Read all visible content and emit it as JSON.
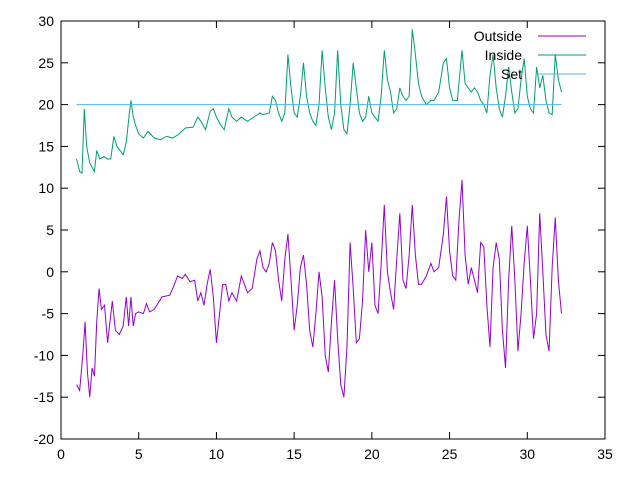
{
  "chart_data": {
    "type": "line",
    "title": "",
    "xlabel": "",
    "ylabel": "",
    "xlim": [
      0,
      35
    ],
    "ylim": [
      -20,
      30
    ],
    "xticks": [
      0,
      5,
      10,
      15,
      20,
      25,
      30,
      35
    ],
    "yticks": [
      -20,
      -15,
      -10,
      -5,
      0,
      5,
      10,
      15,
      20,
      25,
      30
    ],
    "grid": false,
    "legend_position": "top-right",
    "series": [
      {
        "name": "Outside",
        "color": "#9400d3",
        "points": [
          [
            1.0,
            -13.5
          ],
          [
            1.2,
            -14.2
          ],
          [
            1.4,
            -10.0
          ],
          [
            1.55,
            -6.0
          ],
          [
            1.7,
            -12.0
          ],
          [
            1.85,
            -15.0
          ],
          [
            2.0,
            -11.5
          ],
          [
            2.15,
            -12.5
          ],
          [
            2.3,
            -6.0
          ],
          [
            2.45,
            -2.0
          ],
          [
            2.6,
            -4.5
          ],
          [
            2.8,
            -4.0
          ],
          [
            3.0,
            -8.5
          ],
          [
            3.15,
            -6.0
          ],
          [
            3.3,
            -3.5
          ],
          [
            3.5,
            -7.0
          ],
          [
            3.75,
            -7.5
          ],
          [
            4.0,
            -6.5
          ],
          [
            4.2,
            -3.0
          ],
          [
            4.35,
            -6.5
          ],
          [
            4.5,
            -3.0
          ],
          [
            4.65,
            -6.5
          ],
          [
            4.8,
            -5.0
          ],
          [
            5.0,
            -4.8
          ],
          [
            5.3,
            -5.0
          ],
          [
            5.5,
            -3.8
          ],
          [
            5.7,
            -4.8
          ],
          [
            6.0,
            -4.5
          ],
          [
            6.5,
            -3.0
          ],
          [
            7.0,
            -2.8
          ],
          [
            7.3,
            -1.5
          ],
          [
            7.5,
            -0.5
          ],
          [
            7.8,
            -0.8
          ],
          [
            8.0,
            -0.3
          ],
          [
            8.3,
            -1.2
          ],
          [
            8.6,
            -1.0
          ],
          [
            8.8,
            -3.5
          ],
          [
            9.0,
            -2.5
          ],
          [
            9.2,
            -4.0
          ],
          [
            9.4,
            -1.5
          ],
          [
            9.6,
            0.3
          ],
          [
            9.8,
            -3.0
          ],
          [
            10.0,
            -8.5
          ],
          [
            10.2,
            -5.0
          ],
          [
            10.4,
            -1.5
          ],
          [
            10.6,
            -1.5
          ],
          [
            10.8,
            -3.5
          ],
          [
            11.0,
            -2.5
          ],
          [
            11.3,
            -3.5
          ],
          [
            11.6,
            -0.5
          ],
          [
            11.8,
            -1.5
          ],
          [
            12.0,
            -2.5
          ],
          [
            12.3,
            -2.0
          ],
          [
            12.6,
            1.5
          ],
          [
            12.8,
            2.5
          ],
          [
            13.0,
            0.5
          ],
          [
            13.2,
            0.0
          ],
          [
            13.4,
            1.0
          ],
          [
            13.6,
            3.5
          ],
          [
            13.8,
            2.5
          ],
          [
            14.0,
            -1.0
          ],
          [
            14.2,
            -3.5
          ],
          [
            14.4,
            1.5
          ],
          [
            14.6,
            4.5
          ],
          [
            14.8,
            -1.0
          ],
          [
            15.0,
            -7.0
          ],
          [
            15.2,
            -4.0
          ],
          [
            15.4,
            0.5
          ],
          [
            15.6,
            2.0
          ],
          [
            15.8,
            -1.5
          ],
          [
            16.0,
            -7.0
          ],
          [
            16.2,
            -9.0
          ],
          [
            16.4,
            -5.0
          ],
          [
            16.6,
            0.0
          ],
          [
            16.8,
            -3.0
          ],
          [
            17.0,
            -10.0
          ],
          [
            17.2,
            -12.0
          ],
          [
            17.4,
            -6.0
          ],
          [
            17.6,
            -1.0
          ],
          [
            17.8,
            -8.0
          ],
          [
            18.0,
            -13.5
          ],
          [
            18.2,
            -15.0
          ],
          [
            18.4,
            -9.0
          ],
          [
            18.6,
            3.5
          ],
          [
            18.8,
            -2.0
          ],
          [
            19.0,
            -8.5
          ],
          [
            19.2,
            -8.0
          ],
          [
            19.4,
            -3.5
          ],
          [
            19.6,
            5.0
          ],
          [
            19.8,
            0.0
          ],
          [
            20.0,
            3.5
          ],
          [
            20.2,
            -4.0
          ],
          [
            20.4,
            -5.0
          ],
          [
            20.6,
            1.0
          ],
          [
            20.8,
            8.0
          ],
          [
            21.0,
            0.0
          ],
          [
            21.2,
            -2.5
          ],
          [
            21.4,
            -4.5
          ],
          [
            21.6,
            1.5
          ],
          [
            21.8,
            7.0
          ],
          [
            22.0,
            -1.0
          ],
          [
            22.2,
            -2.0
          ],
          [
            22.4,
            2.0
          ],
          [
            22.6,
            8.0
          ],
          [
            22.8,
            2.0
          ],
          [
            23.0,
            -1.5
          ],
          [
            23.2,
            -1.5
          ],
          [
            23.5,
            -0.5
          ],
          [
            23.8,
            1.0
          ],
          [
            24.0,
            0.0
          ],
          [
            24.3,
            0.5
          ],
          [
            24.6,
            4.5
          ],
          [
            24.8,
            9.0
          ],
          [
            25.0,
            2.5
          ],
          [
            25.2,
            -0.5
          ],
          [
            25.4,
            -1.0
          ],
          [
            25.6,
            6.0
          ],
          [
            25.8,
            11.0
          ],
          [
            26.0,
            2.0
          ],
          [
            26.2,
            -1.5
          ],
          [
            26.4,
            0.5
          ],
          [
            26.6,
            -1.0
          ],
          [
            26.8,
            -2.5
          ],
          [
            27.0,
            3.5
          ],
          [
            27.2,
            3.0
          ],
          [
            27.4,
            -4.0
          ],
          [
            27.6,
            -9.0
          ],
          [
            27.8,
            0.5
          ],
          [
            28.0,
            3.5
          ],
          [
            28.2,
            1.5
          ],
          [
            28.4,
            -7.0
          ],
          [
            28.6,
            -11.5
          ],
          [
            28.8,
            -1.0
          ],
          [
            29.0,
            5.5
          ],
          [
            29.2,
            -1.0
          ],
          [
            29.4,
            -9.5
          ],
          [
            29.6,
            -5.0
          ],
          [
            29.8,
            1.0
          ],
          [
            30.0,
            5.5
          ],
          [
            30.2,
            -1.0
          ],
          [
            30.4,
            -8.0
          ],
          [
            30.6,
            -5.0
          ],
          [
            30.8,
            7.0
          ],
          [
            31.0,
            0.0
          ],
          [
            31.2,
            -7.5
          ],
          [
            31.4,
            -9.5
          ],
          [
            31.6,
            0.5
          ],
          [
            31.8,
            6.5
          ],
          [
            32.0,
            -1.0
          ],
          [
            32.2,
            -5.0
          ]
        ]
      },
      {
        "name": "Inside",
        "color": "#009e73",
        "points": [
          [
            1.0,
            13.5
          ],
          [
            1.2,
            12.0
          ],
          [
            1.35,
            11.8
          ],
          [
            1.5,
            19.5
          ],
          [
            1.65,
            15.0
          ],
          [
            1.85,
            13.0
          ],
          [
            2.0,
            12.5
          ],
          [
            2.15,
            12.0
          ],
          [
            2.3,
            14.5
          ],
          [
            2.5,
            13.5
          ],
          [
            2.75,
            13.8
          ],
          [
            3.0,
            13.5
          ],
          [
            3.2,
            13.5
          ],
          [
            3.4,
            16.2
          ],
          [
            3.6,
            15.0
          ],
          [
            3.8,
            14.5
          ],
          [
            4.0,
            14.0
          ],
          [
            4.2,
            15.5
          ],
          [
            4.4,
            19.0
          ],
          [
            4.5,
            20.5
          ],
          [
            4.65,
            18.5
          ],
          [
            4.8,
            17.5
          ],
          [
            5.0,
            16.5
          ],
          [
            5.3,
            16.0
          ],
          [
            5.6,
            16.8
          ],
          [
            6.0,
            16.0
          ],
          [
            6.4,
            15.8
          ],
          [
            6.8,
            16.2
          ],
          [
            7.2,
            16.0
          ],
          [
            7.6,
            16.5
          ],
          [
            8.0,
            17.2
          ],
          [
            8.5,
            17.3
          ],
          [
            8.8,
            18.5
          ],
          [
            9.0,
            18.0
          ],
          [
            9.3,
            17.0
          ],
          [
            9.6,
            19.2
          ],
          [
            9.8,
            19.5
          ],
          [
            10.0,
            18.5
          ],
          [
            10.3,
            17.5
          ],
          [
            10.5,
            17.0
          ],
          [
            10.8,
            19.5
          ],
          [
            11.0,
            18.5
          ],
          [
            11.3,
            18.0
          ],
          [
            11.6,
            18.5
          ],
          [
            12.0,
            18.0
          ],
          [
            12.4,
            18.5
          ],
          [
            12.8,
            19.0
          ],
          [
            13.0,
            18.8
          ],
          [
            13.4,
            19.0
          ],
          [
            13.6,
            21.0
          ],
          [
            13.8,
            20.5
          ],
          [
            14.0,
            19.0
          ],
          [
            14.2,
            18.0
          ],
          [
            14.4,
            19.0
          ],
          [
            14.6,
            26.0
          ],
          [
            14.8,
            22.0
          ],
          [
            15.0,
            19.0
          ],
          [
            15.2,
            18.5
          ],
          [
            15.4,
            21.0
          ],
          [
            15.6,
            25.0
          ],
          [
            15.8,
            21.0
          ],
          [
            16.0,
            19.0
          ],
          [
            16.2,
            18.0
          ],
          [
            16.4,
            17.5
          ],
          [
            16.6,
            20.0
          ],
          [
            16.8,
            26.5
          ],
          [
            17.0,
            22.0
          ],
          [
            17.2,
            18.5
          ],
          [
            17.4,
            17.0
          ],
          [
            17.6,
            19.0
          ],
          [
            17.8,
            26.5
          ],
          [
            18.0,
            20.0
          ],
          [
            18.2,
            17.0
          ],
          [
            18.4,
            16.5
          ],
          [
            18.6,
            20.0
          ],
          [
            18.8,
            25.0
          ],
          [
            19.0,
            22.0
          ],
          [
            19.2,
            19.0
          ],
          [
            19.4,
            18.0
          ],
          [
            19.6,
            18.5
          ],
          [
            19.8,
            21.0
          ],
          [
            20.0,
            19.0
          ],
          [
            20.2,
            18.5
          ],
          [
            20.4,
            18.0
          ],
          [
            20.6,
            21.0
          ],
          [
            20.8,
            26.5
          ],
          [
            21.0,
            23.0
          ],
          [
            21.2,
            21.5
          ],
          [
            21.4,
            19.0
          ],
          [
            21.6,
            19.5
          ],
          [
            21.8,
            22.0
          ],
          [
            22.0,
            21.0
          ],
          [
            22.2,
            20.5
          ],
          [
            22.4,
            21.0
          ],
          [
            22.6,
            29.0
          ],
          [
            22.8,
            26.0
          ],
          [
            23.0,
            22.5
          ],
          [
            23.2,
            21.0
          ],
          [
            23.5,
            20.0
          ],
          [
            23.8,
            20.5
          ],
          [
            24.0,
            20.5
          ],
          [
            24.3,
            21.5
          ],
          [
            24.6,
            25.0
          ],
          [
            24.8,
            25.5
          ],
          [
            25.0,
            22.0
          ],
          [
            25.2,
            20.5
          ],
          [
            25.5,
            20.5
          ],
          [
            25.8,
            26.5
          ],
          [
            26.0,
            22.5
          ],
          [
            26.2,
            22.0
          ],
          [
            26.4,
            21.5
          ],
          [
            26.6,
            22.0
          ],
          [
            26.8,
            21.5
          ],
          [
            27.0,
            20.5
          ],
          [
            27.2,
            20.0
          ],
          [
            27.4,
            19.0
          ],
          [
            27.6,
            23.5
          ],
          [
            27.8,
            26.0
          ],
          [
            28.0,
            22.0
          ],
          [
            28.2,
            19.5
          ],
          [
            28.4,
            18.5
          ],
          [
            28.6,
            21.0
          ],
          [
            28.8,
            24.5
          ],
          [
            29.0,
            21.5
          ],
          [
            29.2,
            19.0
          ],
          [
            29.4,
            19.5
          ],
          [
            29.6,
            23.0
          ],
          [
            29.8,
            25.5
          ],
          [
            30.0,
            21.0
          ],
          [
            30.2,
            19.5
          ],
          [
            30.4,
            19.0
          ],
          [
            30.6,
            24.5
          ],
          [
            30.8,
            22.0
          ],
          [
            31.0,
            23.5
          ],
          [
            31.2,
            20.5
          ],
          [
            31.4,
            19.0
          ],
          [
            31.6,
            18.8
          ],
          [
            31.8,
            26.0
          ],
          [
            32.0,
            23.0
          ],
          [
            32.2,
            21.5
          ]
        ]
      },
      {
        "name": "Set",
        "color": "#56b4e9",
        "points": [
          [
            1.0,
            20.0
          ],
          [
            32.2,
            20.0
          ]
        ]
      }
    ]
  }
}
